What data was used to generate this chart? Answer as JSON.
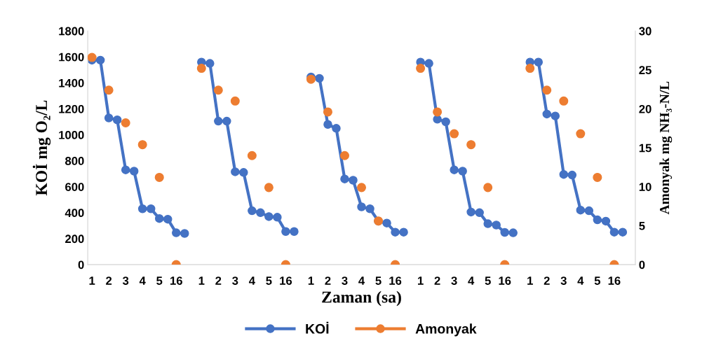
{
  "chart_data": {
    "type": "line",
    "xlabel": "Zaman (sa)",
    "ylabel": "KOİ mg O₂/L",
    "y2label": "Amonyak mg NH₃-N/L",
    "categories": [
      "1",
      null,
      "2",
      null,
      "3",
      null,
      "4",
      null,
      "5",
      null,
      "16",
      null,
      null,
      "1",
      null,
      "2",
      null,
      "3",
      null,
      "4",
      null,
      "5",
      null,
      "16",
      null,
      null,
      "1",
      null,
      "2",
      null,
      "3",
      null,
      "4",
      null,
      "5",
      null,
      "16",
      null,
      null,
      "1",
      null,
      "2",
      null,
      "3",
      null,
      "4",
      null,
      "5",
      null,
      "16",
      null,
      null,
      "1",
      null,
      "2",
      null,
      "3",
      null,
      "4",
      null,
      "5",
      null,
      "16",
      null,
      null
    ],
    "series": [
      {
        "name": "KOİ",
        "color": "#4472c4",
        "marker": "circle",
        "values": [
          1575,
          1575,
          1130,
          1115,
          730,
          720,
          430,
          430,
          355,
          350,
          245,
          240,
          null,
          1560,
          1550,
          1105,
          1105,
          715,
          710,
          415,
          400,
          370,
          365,
          255,
          255,
          null,
          1445,
          1435,
          1080,
          1050,
          660,
          650,
          445,
          430,
          335,
          320,
          250,
          250,
          null,
          1560,
          1550,
          1120,
          1100,
          730,
          720,
          405,
          400,
          315,
          305,
          248,
          245,
          null,
          1560,
          1560,
          1160,
          1145,
          695,
          690,
          420,
          415,
          345,
          335,
          250,
          250,
          null
        ]
      },
      {
        "name": "Amonyak",
        "type": "scatter",
        "axis": "y2",
        "color": "#ed7d31",
        "marker": "circle",
        "values": [
          26.6,
          null,
          22.4,
          null,
          18.2,
          null,
          15.4,
          null,
          11.2,
          null,
          0,
          null,
          null,
          25.2,
          null,
          22.4,
          null,
          21.0,
          null,
          14.0,
          null,
          9.9,
          null,
          0,
          null,
          null,
          23.8,
          null,
          19.6,
          null,
          14.0,
          null,
          9.9,
          null,
          5.6,
          null,
          0,
          null,
          null,
          25.2,
          null,
          19.6,
          null,
          16.8,
          null,
          15.4,
          null,
          9.9,
          null,
          0,
          null,
          null,
          25.2,
          null,
          22.4,
          null,
          21.0,
          null,
          16.8,
          null,
          11.2,
          null,
          0,
          null,
          null
        ]
      }
    ],
    "ylim": [
      0,
      1800
    ],
    "yticks": [
      0,
      200,
      400,
      600,
      800,
      1000,
      1200,
      1400,
      1600,
      1800
    ],
    "y2lim": [
      0,
      30
    ],
    "y2ticks": [
      0,
      5,
      10,
      15,
      20,
      25,
      30
    ],
    "grid": false,
    "legend": "bottom"
  }
}
